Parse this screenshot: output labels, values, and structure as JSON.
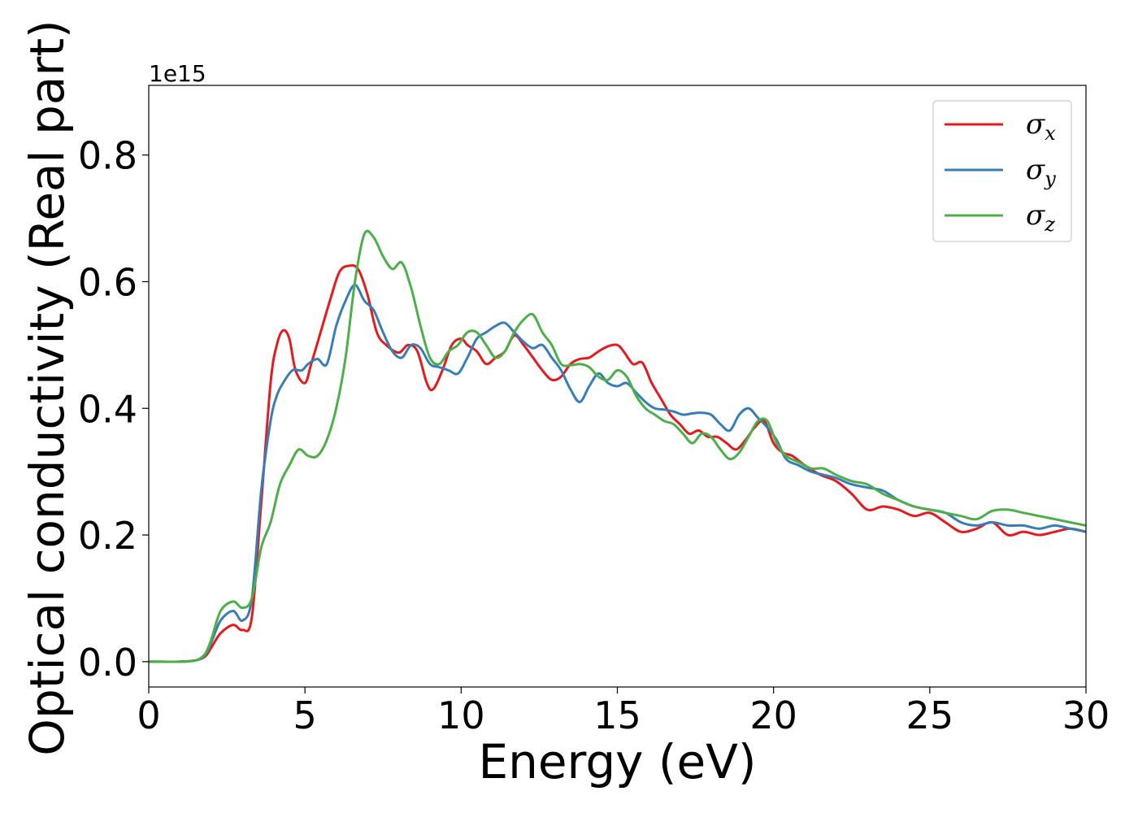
{
  "chart_data": {
    "type": "line",
    "xlabel": "Energy (eV)",
    "ylabel": "Optical conductivity (Real part)",
    "y_offset_text": "1e15",
    "xlim": [
      0,
      30
    ],
    "ylim": [
      -0.04,
      0.91
    ],
    "x_ticks": [
      0,
      5,
      10,
      15,
      20,
      25,
      30
    ],
    "x_tick_labels": [
      "0",
      "5",
      "10",
      "15",
      "20",
      "25",
      "30"
    ],
    "y_ticks": [
      0.0,
      0.2,
      0.4,
      0.6,
      0.8
    ],
    "y_tick_labels": [
      "0.0",
      "0.2",
      "0.4",
      "0.6",
      "0.8"
    ],
    "grid": false,
    "legend_position": "top-right",
    "series": [
      {
        "name": "σx",
        "symbol": "σ",
        "subscript": "x",
        "color": "#e41a1c",
        "x": [
          0,
          1.0,
          1.5,
          1.8,
          2.0,
          2.3,
          2.7,
          3.0,
          3.3,
          3.6,
          3.9,
          4.1,
          4.3,
          4.5,
          4.7,
          5.0,
          5.2,
          5.5,
          5.8,
          6.1,
          6.4,
          6.7,
          7.0,
          7.3,
          7.6,
          8.0,
          8.3,
          8.6,
          8.9,
          9.1,
          9.4,
          9.7,
          10.0,
          10.2,
          10.5,
          10.8,
          11.1,
          11.4,
          11.7,
          12.0,
          12.3,
          12.6,
          12.9,
          13.2,
          13.5,
          13.8,
          14.1,
          14.4,
          14.7,
          15.0,
          15.2,
          15.5,
          15.8,
          16.1,
          16.4,
          16.7,
          17.0,
          17.3,
          17.6,
          17.9,
          18.2,
          18.5,
          18.8,
          19.1,
          19.4,
          19.7,
          20.0,
          20.3,
          20.6,
          21.0,
          21.5,
          22.0,
          22.5,
          23.0,
          23.5,
          24.0,
          24.5,
          25.0,
          25.5,
          26.0,
          26.5,
          27.0,
          27.5,
          28.0,
          28.5,
          29.0,
          29.5,
          30.0
        ],
        "y": [
          0.0,
          0.0,
          0.002,
          0.008,
          0.022,
          0.045,
          0.058,
          0.05,
          0.07,
          0.25,
          0.44,
          0.5,
          0.523,
          0.51,
          0.46,
          0.44,
          0.47,
          0.52,
          0.57,
          0.615,
          0.625,
          0.62,
          0.58,
          0.52,
          0.5,
          0.488,
          0.5,
          0.49,
          0.44,
          0.43,
          0.46,
          0.5,
          0.51,
          0.5,
          0.49,
          0.47,
          0.48,
          0.49,
          0.515,
          0.5,
          0.48,
          0.46,
          0.445,
          0.45,
          0.47,
          0.478,
          0.48,
          0.49,
          0.498,
          0.5,
          0.49,
          0.47,
          0.472,
          0.44,
          0.415,
          0.39,
          0.375,
          0.36,
          0.365,
          0.355,
          0.355,
          0.345,
          0.335,
          0.35,
          0.37,
          0.38,
          0.345,
          0.33,
          0.325,
          0.31,
          0.295,
          0.285,
          0.265,
          0.24,
          0.245,
          0.24,
          0.23,
          0.235,
          0.22,
          0.205,
          0.21,
          0.22,
          0.2,
          0.205,
          0.2,
          0.205,
          0.21,
          0.205
        ]
      },
      {
        "name": "σy",
        "symbol": "σ",
        "subscript": "y",
        "color": "#377eb8",
        "x": [
          0,
          1.0,
          1.5,
          1.8,
          2.0,
          2.3,
          2.7,
          3.0,
          3.3,
          3.6,
          3.9,
          4.1,
          4.3,
          4.6,
          4.9,
          5.1,
          5.4,
          5.7,
          6.0,
          6.3,
          6.6,
          6.9,
          7.2,
          7.5,
          7.8,
          8.1,
          8.4,
          8.7,
          9.0,
          9.3,
          9.6,
          9.9,
          10.2,
          10.5,
          10.8,
          11.1,
          11.4,
          11.7,
          12.0,
          12.3,
          12.6,
          12.9,
          13.2,
          13.5,
          13.8,
          14.1,
          14.4,
          14.7,
          15.0,
          15.3,
          15.6,
          15.9,
          16.2,
          16.5,
          16.8,
          17.1,
          17.4,
          17.7,
          18.0,
          18.3,
          18.6,
          18.9,
          19.2,
          19.5,
          19.8,
          20.1,
          20.4,
          20.8,
          21.2,
          21.6,
          22.0,
          22.5,
          23.0,
          23.5,
          24.0,
          24.5,
          25.0,
          25.5,
          26.0,
          26.5,
          27.0,
          27.5,
          28.0,
          28.5,
          29.0,
          29.5,
          30.0
        ],
        "y": [
          0.0,
          0.0,
          0.002,
          0.01,
          0.03,
          0.065,
          0.08,
          0.065,
          0.1,
          0.27,
          0.38,
          0.42,
          0.44,
          0.46,
          0.46,
          0.47,
          0.478,
          0.47,
          0.53,
          0.57,
          0.595,
          0.57,
          0.555,
          0.52,
          0.49,
          0.48,
          0.5,
          0.495,
          0.47,
          0.465,
          0.46,
          0.455,
          0.48,
          0.51,
          0.52,
          0.53,
          0.535,
          0.52,
          0.505,
          0.495,
          0.5,
          0.48,
          0.46,
          0.43,
          0.41,
          0.435,
          0.455,
          0.44,
          0.435,
          0.44,
          0.425,
          0.41,
          0.4,
          0.398,
          0.395,
          0.39,
          0.392,
          0.393,
          0.39,
          0.375,
          0.365,
          0.39,
          0.4,
          0.385,
          0.37,
          0.35,
          0.32,
          0.31,
          0.3,
          0.295,
          0.29,
          0.28,
          0.275,
          0.27,
          0.255,
          0.245,
          0.24,
          0.235,
          0.22,
          0.215,
          0.22,
          0.215,
          0.215,
          0.21,
          0.215,
          0.21,
          0.205
        ]
      },
      {
        "name": "σz",
        "symbol": "σ",
        "subscript": "z",
        "color": "#4daf4a",
        "x": [
          0,
          1.0,
          1.5,
          1.8,
          2.0,
          2.3,
          2.7,
          3.0,
          3.3,
          3.6,
          3.9,
          4.2,
          4.5,
          4.8,
          5.1,
          5.4,
          5.7,
          6.0,
          6.3,
          6.6,
          6.9,
          7.2,
          7.5,
          7.8,
          8.1,
          8.4,
          8.7,
          9.0,
          9.3,
          9.6,
          9.9,
          10.2,
          10.5,
          10.8,
          11.1,
          11.4,
          11.7,
          12.0,
          12.3,
          12.6,
          12.9,
          13.2,
          13.5,
          13.8,
          14.1,
          14.4,
          14.7,
          15.0,
          15.3,
          15.6,
          15.9,
          16.2,
          16.5,
          16.8,
          17.1,
          17.4,
          17.7,
          18.0,
          18.3,
          18.6,
          18.9,
          19.2,
          19.5,
          19.8,
          20.1,
          20.4,
          20.8,
          21.2,
          21.6,
          22.0,
          22.5,
          23.0,
          23.5,
          24.0,
          24.5,
          25.0,
          25.5,
          26.0,
          26.5,
          27.0,
          27.5,
          28.0,
          28.5,
          29.0,
          29.5,
          30.0
        ],
        "y": [
          0.0,
          0.0,
          0.002,
          0.012,
          0.035,
          0.08,
          0.095,
          0.085,
          0.1,
          0.18,
          0.22,
          0.28,
          0.31,
          0.335,
          0.325,
          0.325,
          0.35,
          0.4,
          0.48,
          0.6,
          0.675,
          0.67,
          0.64,
          0.62,
          0.63,
          0.59,
          0.53,
          0.48,
          0.47,
          0.49,
          0.5,
          0.52,
          0.52,
          0.5,
          0.48,
          0.49,
          0.52,
          0.54,
          0.548,
          0.52,
          0.5,
          0.47,
          0.468,
          0.47,
          0.465,
          0.45,
          0.445,
          0.46,
          0.45,
          0.42,
          0.4,
          0.39,
          0.38,
          0.375,
          0.36,
          0.345,
          0.36,
          0.355,
          0.335,
          0.32,
          0.33,
          0.355,
          0.38,
          0.38,
          0.345,
          0.325,
          0.315,
          0.305,
          0.305,
          0.295,
          0.285,
          0.28,
          0.265,
          0.255,
          0.245,
          0.24,
          0.235,
          0.23,
          0.225,
          0.238,
          0.24,
          0.235,
          0.23,
          0.225,
          0.22,
          0.215
        ]
      }
    ]
  }
}
